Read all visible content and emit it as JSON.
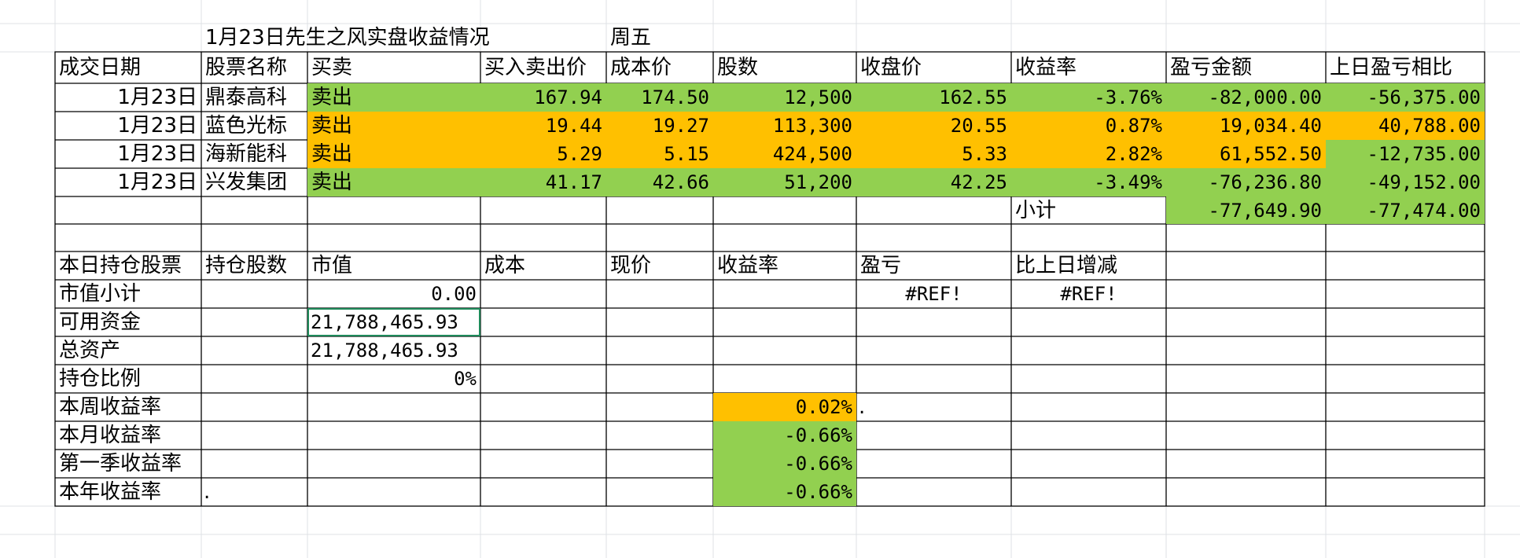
{
  "colors": {
    "green": "#92d050",
    "orange": "#ffc000",
    "selection": "#1e8a5a"
  },
  "header": {
    "title": "1月23日先生之风实盘收益情况",
    "weekday": "周五"
  },
  "trade_columns": [
    "成交日期",
    "股票名称",
    "买卖",
    "买入卖出价",
    "成本价",
    "股数",
    "收盘价",
    "收益率",
    "盈亏金额",
    "上日盈亏相比"
  ],
  "trades": [
    {
      "date": "1月23日",
      "name": "鼎泰高科",
      "side": "卖出",
      "price": "167.94",
      "cost": "174.50",
      "shares": "12,500",
      "close": "162.55",
      "rate": "-3.76%",
      "pnl": "-82,000.00",
      "vs_prev": "-56,375.00"
    },
    {
      "date": "1月23日",
      "name": "蓝色光标",
      "side": "卖出",
      "price": "19.44",
      "cost": "19.27",
      "shares": "113,300",
      "close": "20.55",
      "rate": "0.87%",
      "pnl": "19,034.40",
      "vs_prev": "40,788.00"
    },
    {
      "date": "1月23日",
      "name": "海新能科",
      "side": "卖出",
      "price": "5.29",
      "cost": "5.15",
      "shares": "424,500",
      "close": "5.33",
      "rate": "2.82%",
      "pnl": "61,552.50",
      "vs_prev": "-12,735.00"
    },
    {
      "date": "1月23日",
      "name": "兴发集团",
      "side": "卖出",
      "price": "41.17",
      "cost": "42.66",
      "shares": "51,200",
      "close": "42.25",
      "rate": "-3.49%",
      "pnl": "-76,236.80",
      "vs_prev": "-49,152.00"
    }
  ],
  "subtotal": {
    "label": "小计",
    "pnl": "-77,649.90",
    "vs_prev": "-77,474.00"
  },
  "holdings_columns": [
    "本日持仓股票",
    "持仓股数",
    "市值",
    "成本",
    "现价",
    "收益率",
    "盈亏",
    "比上日增减"
  ],
  "summary": {
    "market_value_label": "市值小计",
    "market_value": "0.00",
    "ref1": "#REF!",
    "ref2": "#REF!",
    "available_label": "可用资金",
    "available": "21,788,465.93",
    "total_label": "总资产",
    "total": "21,788,465.93",
    "ratio_label": "持仓比例",
    "ratio": "0%",
    "week_label": "本周收益率",
    "week": "0.02%",
    "week_mark": ".",
    "month_label": "本月收益率",
    "month": "-0.66%",
    "q1_label": "第一季收益率",
    "q1": "-0.66%",
    "year_label": "本年收益率",
    "year": "-0.66%",
    "year_mark": "."
  }
}
